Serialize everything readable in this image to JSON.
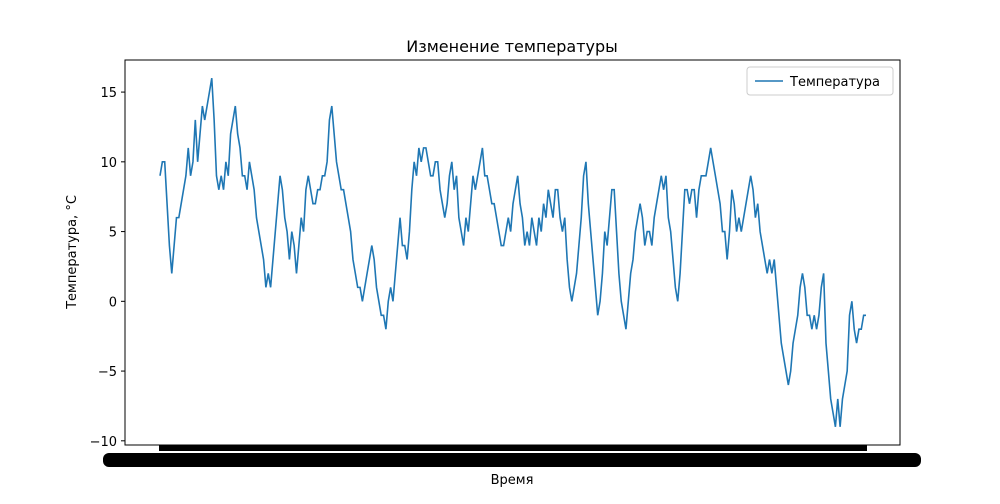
{
  "chart_data": {
    "type": "line",
    "title": "Изменение температуры",
    "x_label": "Время",
    "y_label": "Температура, °C",
    "series": [
      {
        "name": "Температура",
        "color": "#1f77b4",
        "values": [
          9,
          10,
          10,
          7,
          4,
          2,
          4,
          6,
          6,
          7,
          8,
          9,
          11,
          9,
          10,
          13,
          10,
          12,
          14,
          13,
          14,
          15,
          16,
          13,
          9,
          8,
          9,
          8,
          10,
          9,
          12,
          13,
          14,
          12,
          11,
          9,
          9,
          8,
          10,
          9,
          8,
          6,
          5,
          4,
          3,
          1,
          2,
          1,
          3,
          5,
          7,
          9,
          8,
          6,
          5,
          3,
          5,
          4,
          2,
          4,
          6,
          5,
          8,
          9,
          8,
          7,
          7,
          8,
          8,
          9,
          9,
          10,
          13,
          14,
          12,
          10,
          9,
          8,
          8,
          7,
          6,
          5,
          3,
          2,
          1,
          1,
          0,
          1,
          2,
          3,
          4,
          3,
          1,
          0,
          -1,
          -1,
          -2,
          0,
          1,
          0,
          2,
          4,
          6,
          4,
          4,
          3,
          5,
          8,
          10,
          9,
          11,
          10,
          11,
          11,
          10,
          9,
          9,
          10,
          10,
          8,
          7,
          6,
          7,
          9,
          10,
          8,
          9,
          6,
          5,
          4,
          6,
          5,
          7,
          9,
          8,
          9,
          10,
          11,
          9,
          9,
          8,
          7,
          7,
          6,
          5,
          4,
          4,
          5,
          6,
          5,
          7,
          8,
          9,
          7,
          6,
          4,
          5,
          4,
          6,
          5,
          4,
          6,
          5,
          7,
          6,
          8,
          7,
          6,
          8,
          8,
          6,
          5,
          6,
          3,
          1,
          0,
          1,
          2,
          4,
          6,
          9,
          10,
          7,
          5,
          3,
          1,
          -1,
          0,
          2,
          5,
          4,
          6,
          8,
          8,
          5,
          2,
          0,
          -1,
          -2,
          0,
          2,
          3,
          5,
          6,
          7,
          6,
          4,
          5,
          5,
          4,
          6,
          7,
          8,
          9,
          8,
          9,
          6,
          5,
          3,
          1,
          0,
          2,
          5,
          8,
          8,
          7,
          8,
          8,
          6,
          8,
          9,
          9,
          9,
          10,
          11,
          10,
          9,
          8,
          7,
          5,
          5,
          3,
          5,
          8,
          7,
          5,
          6,
          5,
          6,
          7,
          8,
          9,
          8,
          6,
          7,
          5,
          4,
          3,
          2,
          3,
          2,
          3,
          1,
          -1,
          -3,
          -4,
          -5,
          -6,
          -5,
          -3,
          -2,
          -1,
          1,
          2,
          1,
          -1,
          -1,
          -2,
          -1,
          -2,
          -1,
          1,
          2,
          -3,
          -5,
          -7,
          -8,
          -9,
          -7,
          -9,
          -7,
          -6,
          -5,
          -1,
          0,
          -2,
          -3,
          -2,
          -2,
          -1,
          -1
        ]
      }
    ],
    "ylim": [
      -10.3,
      17.3
    ],
    "yticks": [
      {
        "value": -10,
        "label": "−10"
      },
      {
        "value": -5,
        "label": "−5"
      },
      0,
      5,
      10,
      15
    ],
    "legend": "upper right"
  }
}
